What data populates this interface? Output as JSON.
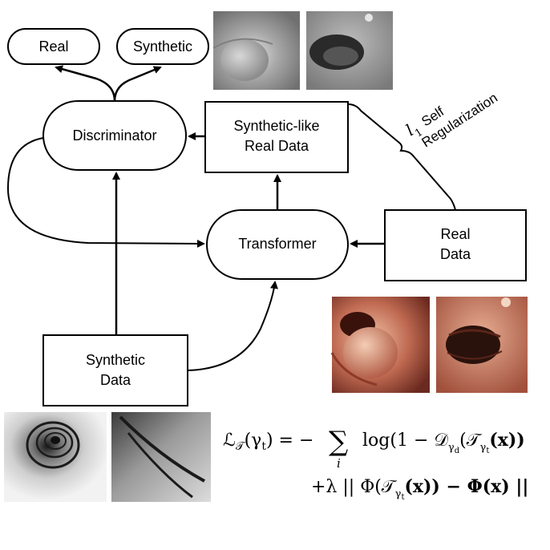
{
  "nodes": {
    "real_output": "Real",
    "synthetic_output": "Synthetic",
    "discriminator": "Discriminator",
    "synthetic_like_line1": "Synthetic-like",
    "synthetic_like_line2": "Real Data",
    "transformer": "Transformer",
    "real_data_line1": "Real",
    "real_data_line2": "Data",
    "synthetic_data_line1": "Synthetic",
    "synthetic_data_line2": "Data"
  },
  "regularization": {
    "l_symbol": "l",
    "l_subscript": "1",
    "word1": "Self",
    "word2": "Regularization"
  },
  "equation": {
    "line1": {
      "lhs": "ℒ",
      "lhs_sub": "𝒯",
      "lhs_arg": "(γ",
      "lhs_arg_sub": "t",
      "lhs_close": ")",
      "equals_minus": " = −",
      "sum": "∑",
      "sum_index": "i",
      "log_part": "log(1 − 𝒟",
      "d_sub": "γ",
      "d_sub_sub": "d",
      "t_open": "(𝒯",
      "t_sub": "γ",
      "t_sub_sub": "t",
      "x_part": "(x))"
    },
    "line2": {
      "lambda": "+λ || Φ(𝒯",
      "t_sub": "γ",
      "t_sub_sub": "t",
      "x_part": "(x)) − Φ(x) ||"
    }
  },
  "colors": {
    "stroke": "#000000",
    "gray_dark": "#5a5a5a",
    "gray_light": "#c8c8c8",
    "tissue_dark": "#6b2a1f",
    "tissue_mid": "#c7735c",
    "tissue_light": "#e9b49a"
  }
}
